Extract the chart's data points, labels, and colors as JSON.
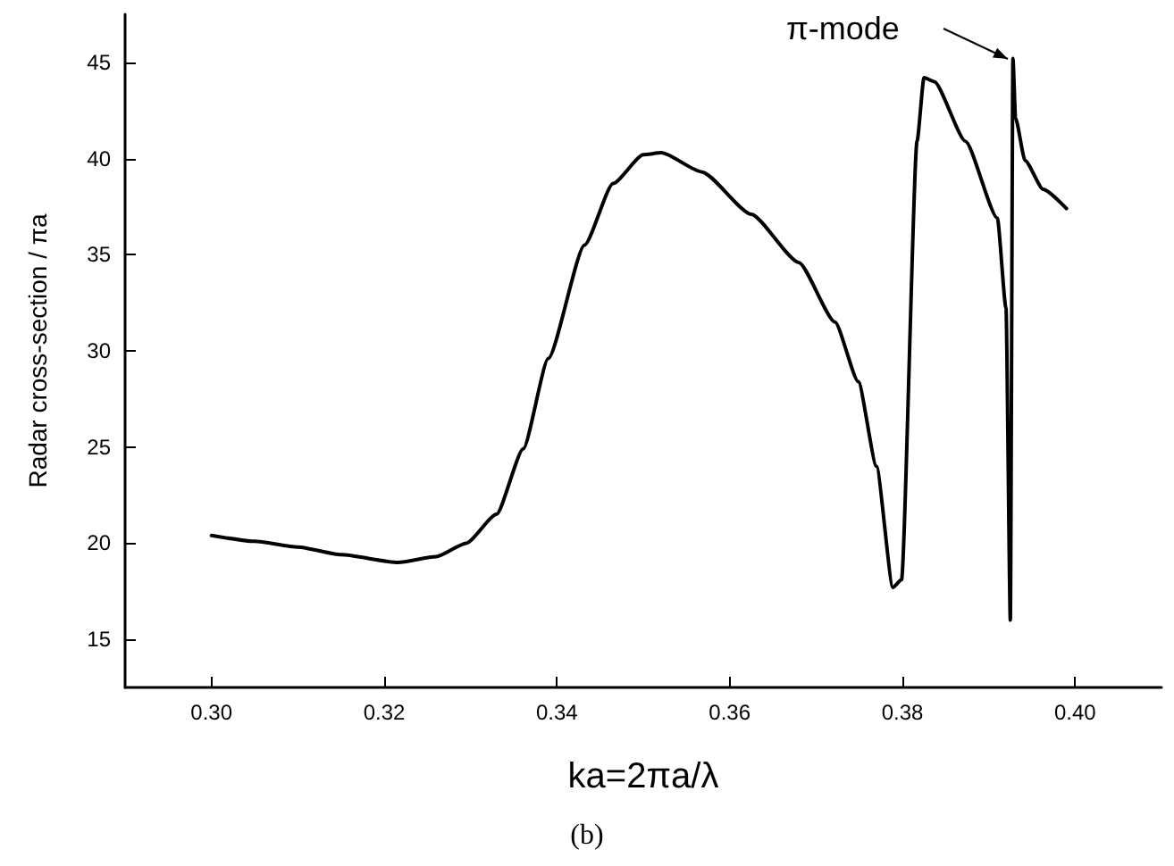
{
  "chart_data": {
    "type": "line",
    "xlabel": "ka=2πa/λ",
    "ylabel": "Radar cross-section / πa",
    "xlim": [
      0.29,
      0.41
    ],
    "xticks": [
      {
        "value": 0.3,
        "label": "0.30"
      },
      {
        "value": 0.32,
        "label": "0.32"
      },
      {
        "value": 0.34,
        "label": "0.34"
      },
      {
        "value": 0.36,
        "label": "0.36"
      },
      {
        "value": 0.38,
        "label": "0.38"
      },
      {
        "value": 0.4,
        "label": "0.40"
      }
    ],
    "ylim": [
      12.5,
      47.5
    ],
    "yticks": [
      15,
      20,
      25,
      30,
      35,
      40,
      45
    ],
    "grid": false,
    "marker": "none",
    "line_style": "solid",
    "annotations": [
      "π-mode",
      "(b)"
    ],
    "series": [
      {
        "color": "#000000",
        "x": [
          0.3,
          0.305,
          0.31,
          0.315,
          0.3216,
          0.326,
          0.3295,
          0.333,
          0.3361,
          0.339,
          0.3432,
          0.3465,
          0.35,
          0.3521,
          0.3568,
          0.3625,
          0.368,
          0.3722,
          0.3749,
          0.377,
          0.3789,
          0.3799,
          0.3817,
          0.3825,
          0.3837,
          0.3873,
          0.391,
          0.392,
          0.3925,
          0.3928,
          0.3931,
          0.3942,
          0.3963,
          0.399
        ],
        "values": [
          20.4,
          20.1,
          19.8,
          19.4,
          19.0,
          19.3,
          20.0,
          21.5,
          24.9,
          29.6,
          35.5,
          38.7,
          40.2,
          40.3,
          39.3,
          37.1,
          34.6,
          31.5,
          28.4,
          24.0,
          17.7,
          18.1,
          40.9,
          44.2,
          44.0,
          40.9,
          36.9,
          32.2,
          16.0,
          45.2,
          42.1,
          39.9,
          38.4,
          37.4
        ]
      }
    ]
  }
}
